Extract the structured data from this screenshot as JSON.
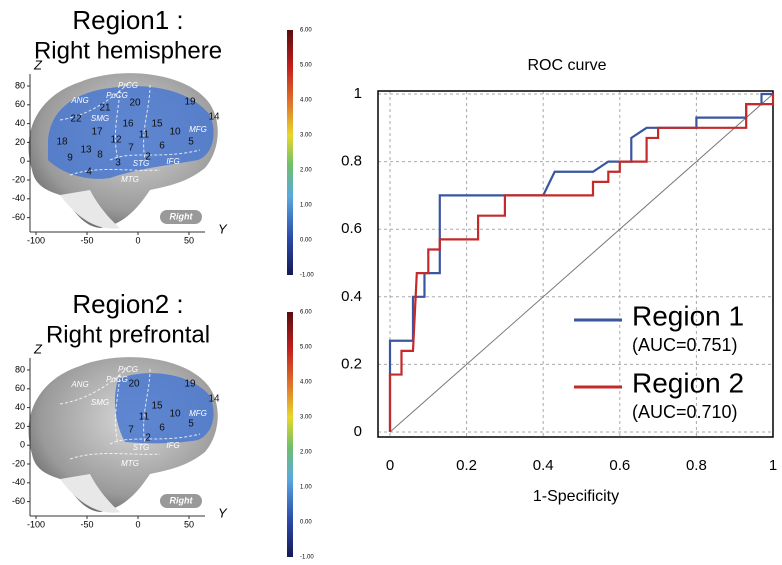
{
  "chart_data": {
    "type": "line",
    "title": "ROC curve",
    "x_label": "1-Specificity",
    "xlim": [
      0,
      1
    ],
    "ylim": [
      0,
      1
    ],
    "xticks": [
      0,
      0.2,
      0.4,
      0.6,
      0.8,
      1
    ],
    "yticks": [
      0,
      0.2,
      0.4,
      0.6,
      0.8,
      1
    ],
    "grid": true,
    "series": [
      {
        "name": "Region 1",
        "auc_label": "(AUC=0.751)",
        "color": "#3a56a0",
        "x": [
          0,
          0,
          0.06,
          0.06,
          0.09,
          0.09,
          0.13,
          0.13,
          0.4,
          0.43,
          0.53,
          0.57,
          0.63,
          0.63,
          0.67,
          0.8,
          0.8,
          0.93,
          0.93,
          0.97,
          0.97,
          1
        ],
        "values": [
          0,
          0.27,
          0.27,
          0.4,
          0.4,
          0.47,
          0.47,
          0.7,
          0.7,
          0.77,
          0.77,
          0.8,
          0.8,
          0.87,
          0.9,
          0.9,
          0.93,
          0.93,
          0.97,
          0.97,
          1,
          1
        ]
      },
      {
        "name": "Region 2",
        "auc_label": "(AUC=0.710)",
        "color": "#c42a2a",
        "x": [
          0,
          0,
          0.03,
          0.03,
          0.06,
          0.07,
          0.1,
          0.1,
          0.13,
          0.13,
          0.23,
          0.23,
          0.3,
          0.3,
          0.53,
          0.53,
          0.57,
          0.57,
          0.6,
          0.6,
          0.67,
          0.67,
          0.7,
          0.7,
          0.93,
          0.93,
          1,
          1
        ],
        "values": [
          0,
          0.17,
          0.17,
          0.24,
          0.24,
          0.47,
          0.47,
          0.54,
          0.54,
          0.57,
          0.57,
          0.64,
          0.64,
          0.7,
          0.7,
          0.74,
          0.74,
          0.77,
          0.77,
          0.8,
          0.8,
          0.87,
          0.87,
          0.9,
          0.9,
          0.97,
          0.97,
          1
        ]
      }
    ]
  },
  "panels": [
    {
      "title": [
        "Region1 :",
        "Right hemisphere"
      ],
      "z_label": "Z",
      "y_label": "Y",
      "z_ticks": [
        "80",
        "60",
        "40",
        "20",
        "0",
        "-20",
        "-40",
        "-60"
      ],
      "y_ticks": [
        "-100",
        "-50",
        "0",
        "50"
      ],
      "regions": [
        "PrCG",
        "PoCG",
        "ANG",
        "SMG",
        "STG",
        "MTG",
        "IFG",
        "MFG"
      ],
      "numbers": [
        "21",
        "20",
        "19",
        "22",
        "16",
        "15",
        "14",
        "18",
        "17",
        "12",
        "11",
        "10",
        "13",
        "7",
        "6",
        "5",
        "9",
        "8",
        "3",
        "2",
        "4"
      ],
      "badge": "Right",
      "colorbar": [
        "6.00",
        "5.00",
        "4.00",
        "3.00",
        "2.00",
        "1.00",
        "0.00",
        "-1.00"
      ]
    },
    {
      "title": [
        "Region2 :",
        "Right prefrontal"
      ],
      "z_label": "Z",
      "y_label": "Y",
      "z_ticks": [
        "80",
        "60",
        "40",
        "20",
        "0",
        "-20",
        "-40",
        "-60"
      ],
      "y_ticks": [
        "-100",
        "-50",
        "0",
        "50"
      ],
      "regions": [
        "PrCG",
        "PoCG",
        "ANG",
        "SMG",
        "STG",
        "MTG",
        "IFG",
        "MFG"
      ],
      "numbers": [
        "20",
        "19",
        "15",
        "14",
        "11",
        "10",
        "7",
        "6",
        "5",
        "2"
      ],
      "badge": "Right",
      "colorbar": [
        "6.00",
        "5.00",
        "4.00",
        "3.00",
        "2.00",
        "1.00",
        "0.00",
        "-1.00"
      ]
    }
  ]
}
